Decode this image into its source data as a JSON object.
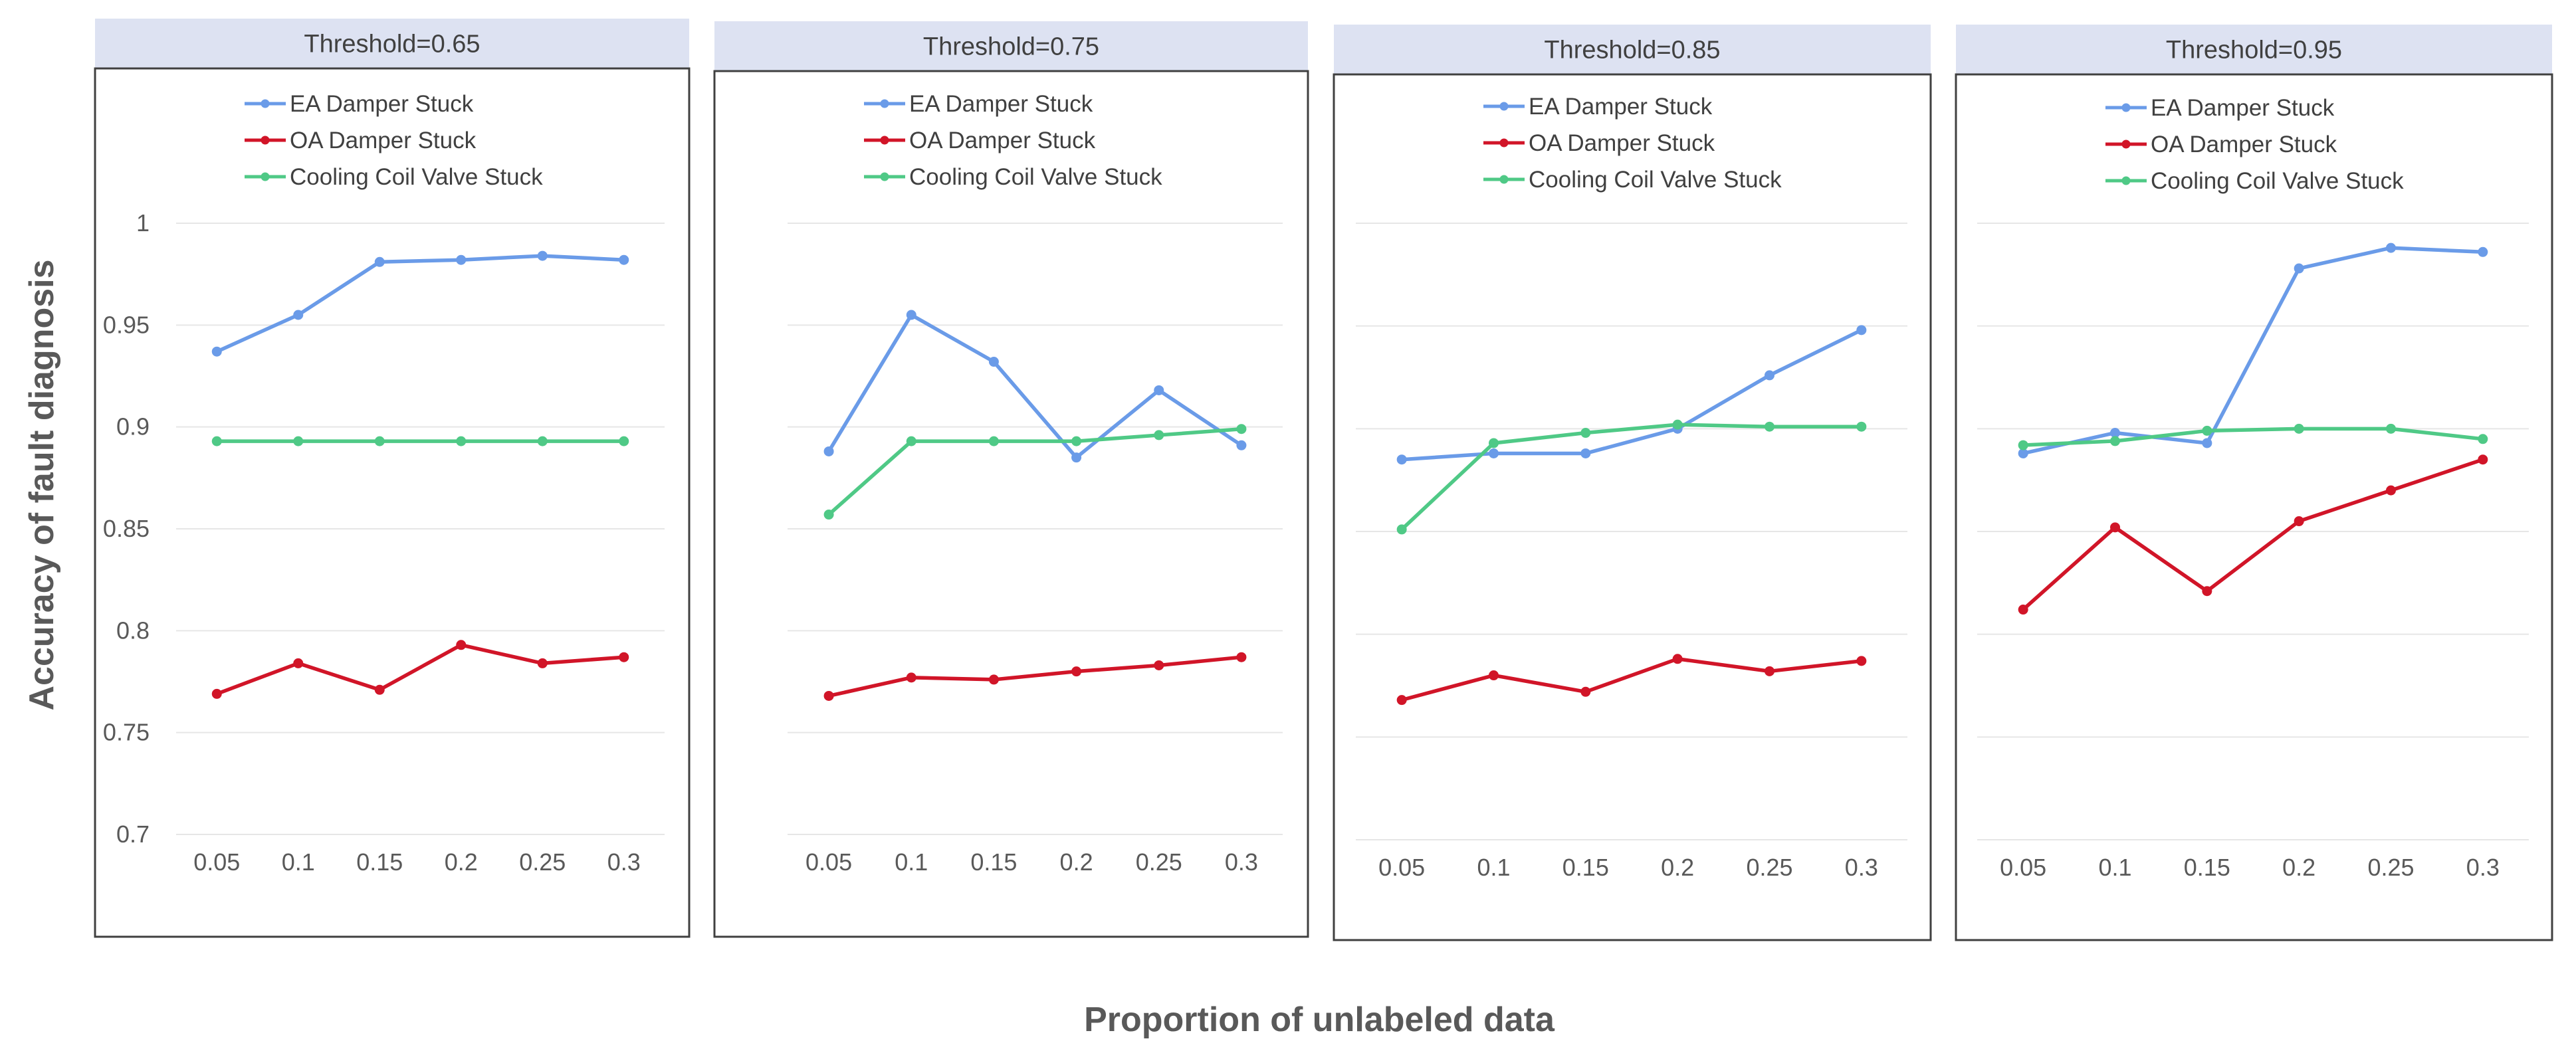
{
  "figure": {
    "ylabel": "Accuracy of fault diagnosis",
    "xlabel": "Proportion of unlabeled data"
  },
  "colors": {
    "EA Damper Stuck": "#6a9be8",
    "OA Damper Stuck": "#d11528",
    "Cooling Coil Valve Stuck": "#4fc986",
    "strip": "#dde2f2",
    "grid": "#e6e6e6",
    "frame": "#404040"
  },
  "chart_data": [
    {
      "type": "line",
      "title": "Threshold=0.65",
      "categories": [
        "0.05",
        "0.1",
        "0.15",
        "0.2",
        "0.25",
        "0.3"
      ],
      "ylim": [
        0.7,
        1.0
      ],
      "yticks": [
        "0.7",
        "0.75",
        "0.8",
        "0.85",
        "0.9",
        "0.95",
        "1"
      ],
      "show_ytick_labels": true,
      "series": [
        {
          "name": "EA Damper Stuck",
          "values": [
            0.937,
            0.955,
            0.981,
            0.982,
            0.984,
            0.982
          ]
        },
        {
          "name": "OA Damper Stuck",
          "values": [
            0.769,
            0.784,
            0.771,
            0.793,
            0.784,
            0.787
          ]
        },
        {
          "name": "Cooling Coil Valve Stuck",
          "values": [
            0.893,
            0.893,
            0.893,
            0.893,
            0.893,
            0.893
          ]
        }
      ]
    },
    {
      "type": "line",
      "title": "Threshold=0.75",
      "categories": [
        "0.05",
        "0.1",
        "0.15",
        "0.2",
        "0.25",
        "0.3"
      ],
      "ylim": [
        0.7,
        1.0
      ],
      "yticks": [
        "0.7",
        "0.75",
        "0.8",
        "0.85",
        "0.9",
        "0.95",
        "1"
      ],
      "show_ytick_labels": false,
      "series": [
        {
          "name": "EA Damper Stuck",
          "values": [
            0.888,
            0.955,
            0.932,
            0.885,
            0.918,
            0.891
          ]
        },
        {
          "name": "OA Damper Stuck",
          "values": [
            0.768,
            0.777,
            0.776,
            0.78,
            0.783,
            0.787
          ]
        },
        {
          "name": "Cooling Coil Valve Stuck",
          "values": [
            0.857,
            0.893,
            0.893,
            0.893,
            0.896,
            0.899
          ]
        }
      ]
    },
    {
      "type": "line",
      "title": "Threshold=0.85",
      "categories": [
        "0.05",
        "0.1",
        "0.15",
        "0.2",
        "0.25",
        "0.3"
      ],
      "ylim": [
        0.7,
        1.0
      ],
      "yticks": [
        "0.7",
        "0.75",
        "0.8",
        "0.85",
        "0.9",
        "0.95",
        "1"
      ],
      "show_ytick_labels": false,
      "series": [
        {
          "name": "EA Damper Stuck",
          "values": [
            0.885,
            0.888,
            0.888,
            0.9,
            0.926,
            0.948
          ]
        },
        {
          "name": "OA Damper Stuck",
          "values": [
            0.768,
            0.78,
            0.772,
            0.788,
            0.782,
            0.787
          ]
        },
        {
          "name": "Cooling Coil Valve Stuck",
          "values": [
            0.851,
            0.893,
            0.898,
            0.902,
            0.901,
            0.901
          ]
        }
      ]
    },
    {
      "type": "line",
      "title": "Threshold=0.95",
      "categories": [
        "0.05",
        "0.1",
        "0.15",
        "0.2",
        "0.25",
        "0.3"
      ],
      "ylim": [
        0.7,
        1.0
      ],
      "yticks": [
        "0.7",
        "0.75",
        "0.8",
        "0.85",
        "0.9",
        "0.95",
        "1"
      ],
      "show_ytick_labels": false,
      "series": [
        {
          "name": "EA Damper Stuck",
          "values": [
            0.888,
            0.898,
            0.893,
            0.978,
            0.988,
            0.986
          ]
        },
        {
          "name": "OA Damper Stuck",
          "values": [
            0.812,
            0.852,
            0.821,
            0.855,
            0.87,
            0.885
          ]
        },
        {
          "name": "Cooling Coil Valve Stuck",
          "values": [
            0.892,
            0.894,
            0.899,
            0.9,
            0.9,
            0.895
          ]
        }
      ]
    }
  ]
}
